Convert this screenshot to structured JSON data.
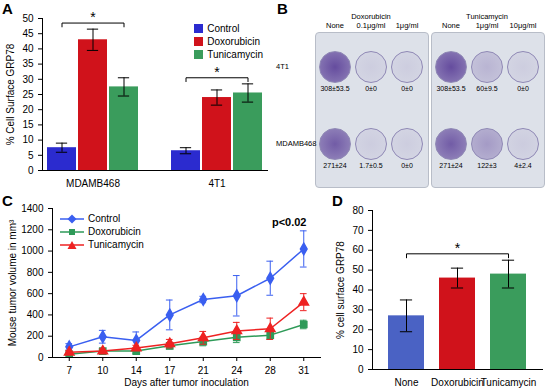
{
  "chart_data": [
    {
      "type": "bar",
      "title": "A",
      "categories": [
        "MDAMB468",
        "4T1"
      ],
      "series": [
        {
          "name": "Control",
          "color": "#2b2bcf",
          "values": [
            7.5,
            6.5
          ],
          "errors": [
            1.5,
            1
          ]
        },
        {
          "name": "Doxorubicin",
          "color": "#d0121b",
          "values": [
            43,
            24
          ],
          "errors": [
            3.5,
            2.5
          ]
        },
        {
          "name": "Tunicamycin",
          "color": "#3a9c5c",
          "values": [
            27.5,
            25.5
          ],
          "errors": [
            3,
            3
          ]
        }
      ],
      "ylabel": "% Cell Surface GRP78",
      "ylim": [
        0,
        50
      ],
      "yticks": [
        0,
        5,
        10,
        15,
        20,
        25,
        30,
        35,
        40,
        45,
        50
      ],
      "grid": false,
      "legend": "top-right",
      "annotations": [
        "*",
        "*"
      ]
    },
    {
      "type": "line",
      "title": "C",
      "categories": [
        "7",
        "10",
        "14",
        "17",
        "21",
        "24",
        "28",
        "31"
      ],
      "xlabel": "Days after tumor inoculation",
      "ylabel": "Mouse tumor volume in mm³",
      "series": [
        {
          "name": "Control",
          "color": "#3a5ff0",
          "marker": "diamond",
          "values": [
            100,
            195,
            160,
            400,
            545,
            580,
            745,
            1020
          ],
          "errors": [
            30,
            60,
            80,
            140,
            30,
            190,
            160,
            170
          ]
        },
        {
          "name": "Doxorubicin",
          "color": "#2e9a58",
          "marker": "square",
          "values": [
            30,
            60,
            60,
            110,
            150,
            190,
            210,
            310
          ],
          "errors": [
            10,
            20,
            20,
            30,
            40,
            50,
            40,
            40
          ]
        },
        {
          "name": "Tunicamycin",
          "color": "#ee2222",
          "marker": "triangle",
          "values": [
            50,
            60,
            90,
            130,
            185,
            250,
            270,
            520
          ],
          "errors": [
            15,
            20,
            25,
            40,
            60,
            80,
            100,
            80
          ]
        }
      ],
      "ylim": [
        0,
        1400
      ],
      "yticks": [
        0,
        200,
        400,
        600,
        800,
        1000,
        1200,
        1400
      ],
      "grid": false,
      "legend": "top-left",
      "annotations": [
        "p<0.02"
      ]
    },
    {
      "type": "bar",
      "title": "D",
      "categories": [
        "None",
        "Doxorubicin",
        "Tunicamycin"
      ],
      "values": [
        27,
        46,
        48
      ],
      "errors": [
        8,
        5,
        7
      ],
      "colors": [
        "#4a62c4",
        "#d0121b",
        "#3a9c5c"
      ],
      "ylabel": "% cell surface GRP78",
      "ylim": [
        0,
        80
      ],
      "yticks": [
        0,
        10,
        20,
        30,
        40,
        50,
        60,
        70,
        80
      ],
      "grid": false,
      "annotations": [
        "*"
      ]
    }
  ],
  "plates": {
    "title": "B",
    "columns": [
      "None",
      "Doxorubicin 0.1μg/ml",
      "1μg/ml",
      "None",
      "Tunicamycin 1μg/ml",
      "10μg/ml"
    ],
    "rows": [
      {
        "label": "4T1",
        "counts": [
          "308±53.5",
          "0±0",
          "0±0",
          "308±53.5",
          "60±9.5",
          "0±0"
        ]
      },
      {
        "label": "MDAMB468",
        "counts": [
          "271±24",
          "1.7±0.5",
          "0±0",
          "271±24",
          "122±3",
          "4±2.4"
        ]
      }
    ]
  }
}
